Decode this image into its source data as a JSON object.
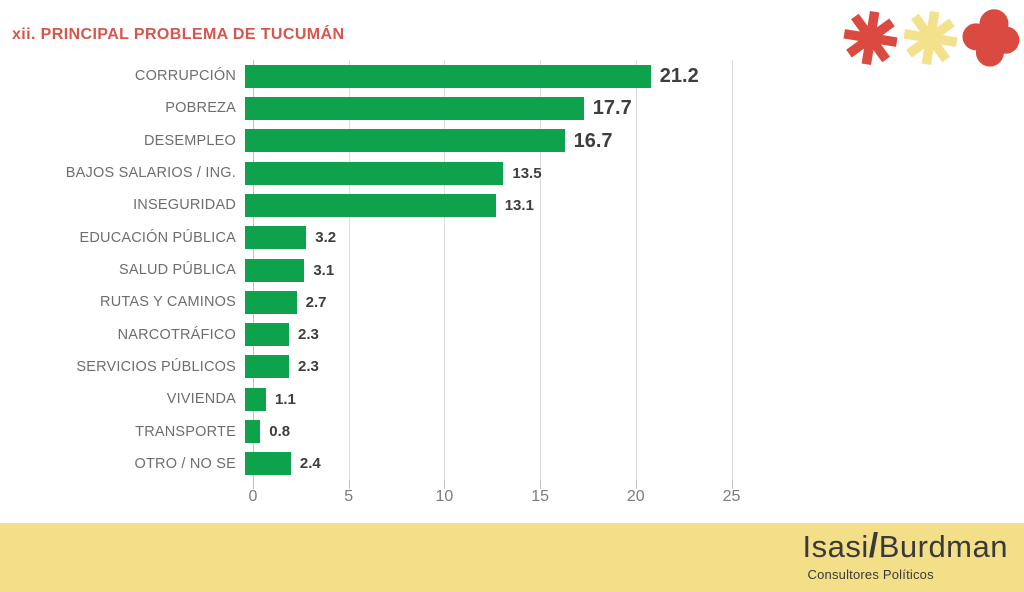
{
  "header": {
    "title": "xii. PRINCIPAL PROBLEMA DE TUCUMÁN",
    "title_color": "#d8554b",
    "icons": [
      {
        "name": "asterisk-icon-red",
        "color": "#da4a40"
      },
      {
        "name": "asterisk-icon-yellow",
        "color": "#f3e18c"
      },
      {
        "name": "flower-icon-red",
        "color": "#da4a40"
      }
    ]
  },
  "chart_data": {
    "type": "bar",
    "orientation": "horizontal",
    "title": "xii. PRINCIPAL PROBLEMA DE TUCUMÁN",
    "categories": [
      "CORRUPCIÓN",
      "POBREZA",
      "DESEMPLEO",
      "BAJOS SALARIOS / ING.",
      "INSEGURIDAD",
      "EDUCACIÓN PÚBLICA",
      "SALUD PÚBLICA",
      "RUTAS Y CAMINOS",
      "NARCOTRÁFICO",
      "SERVICIOS PÚBLICOS",
      "VIVIENDA",
      "TRANSPORTE",
      "OTRO / NO SE"
    ],
    "values": [
      21.2,
      17.7,
      16.7,
      13.5,
      13.1,
      3.2,
      3.1,
      2.7,
      2.3,
      2.3,
      1.1,
      0.8,
      2.4
    ],
    "value_labels": [
      "21.2",
      "17.7",
      "16.7",
      "13.5",
      "13.1",
      "3.2",
      "3.1",
      "2.7",
      "2.3",
      "2.3",
      "1.1",
      "0.8",
      "2.4"
    ],
    "xticks": [
      0,
      5,
      10,
      15,
      20,
      25
    ],
    "xtick_labels": [
      "0",
      "5",
      "10",
      "15",
      "20",
      "25"
    ],
    "xlim": [
      0,
      25.7
    ],
    "grid": true,
    "legend": "none",
    "emphasized_value_count": 3,
    "colors": {
      "bar": "#0fa24c",
      "gridline": "#dcdcdc",
      "axis": "#c2c2c2",
      "category_label": "#6e6e6e",
      "value_label": "#3e3e3e",
      "tick_label": "#7c7c7c"
    }
  },
  "footer": {
    "background": "#f2df87",
    "brand_first": "Isasi",
    "brand_slash": "/",
    "brand_second": "Burdman",
    "tagline": "Consultores Políticos",
    "text_color": "#3a3a3a"
  }
}
